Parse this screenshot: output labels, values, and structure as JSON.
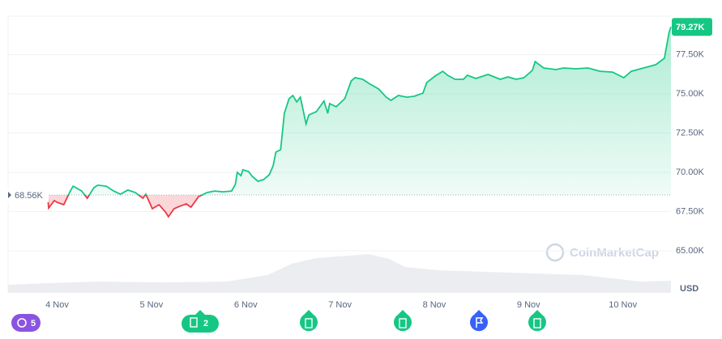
{
  "chart_data": {
    "type": "line",
    "x": [
      -0.1,
      -0.09,
      -0.03,
      0.0,
      0.07,
      0.14,
      0.17,
      0.26,
      0.32,
      0.39,
      0.43,
      0.52,
      0.6,
      0.67,
      0.75,
      0.83,
      0.91,
      0.94,
      1.01,
      1.08,
      1.15,
      1.18,
      1.24,
      1.3,
      1.37,
      1.42,
      1.5,
      1.59,
      1.67,
      1.76,
      1.85,
      1.89,
      1.91,
      1.95,
      1.97,
      2.03,
      2.07,
      2.13,
      2.19,
      2.25,
      2.29,
      2.32,
      2.37,
      2.41,
      2.46,
      2.5,
      2.54,
      2.58,
      2.64,
      2.67,
      2.75,
      2.83,
      2.87,
      2.89,
      2.96,
      3.05,
      3.12,
      3.16,
      3.24,
      3.32,
      3.41,
      3.49,
      3.54,
      3.62,
      3.71,
      3.79,
      3.88,
      3.92,
      4.01,
      4.09,
      4.14,
      4.22,
      4.31,
      4.35,
      4.44,
      4.57,
      4.7,
      4.78,
      4.87,
      4.95,
      5.04,
      5.07,
      5.16,
      5.29,
      5.37,
      5.5,
      5.63,
      5.76,
      5.89,
      6.01,
      6.09,
      6.22,
      6.35,
      6.44,
      6.49,
      6.51
    ],
    "series": [
      {
        "name": "USD",
        "color": "#16c784",
        "down_color": "#ea3943",
        "values": [
          68.45,
          67.73,
          68.2,
          68.09,
          67.94,
          68.81,
          69.12,
          68.81,
          68.35,
          69.02,
          69.18,
          69.12,
          68.81,
          68.61,
          68.87,
          68.71,
          68.35,
          68.61,
          67.68,
          67.94,
          67.47,
          67.17,
          67.68,
          67.84,
          67.99,
          67.78,
          68.45,
          68.71,
          68.81,
          68.76,
          68.81,
          69.23,
          70.0,
          69.79,
          70.16,
          70.05,
          69.74,
          69.43,
          69.54,
          69.85,
          70.41,
          71.29,
          71.44,
          73.76,
          74.69,
          74.9,
          74.49,
          74.79,
          73.09,
          73.66,
          73.87,
          74.54,
          73.76,
          74.38,
          74.18,
          74.69,
          75.83,
          76.03,
          75.93,
          75.62,
          75.31,
          74.79,
          74.59,
          74.9,
          74.79,
          74.85,
          75.05,
          75.72,
          76.14,
          76.44,
          76.19,
          75.93,
          75.93,
          76.19,
          75.98,
          76.24,
          75.93,
          76.08,
          75.93,
          76.03,
          76.5,
          77.06,
          76.65,
          76.55,
          76.65,
          76.6,
          76.65,
          76.44,
          76.39,
          76.03,
          76.44,
          76.65,
          76.86,
          77.27,
          78.92,
          79.27
        ]
      }
    ],
    "xlim": [
      -0.52,
      6.51
    ],
    "xticks": [
      {
        "value": 0,
        "label": "4 Nov"
      },
      {
        "value": 1,
        "label": "5 Nov"
      },
      {
        "value": 2,
        "label": "6 Nov"
      },
      {
        "value": 3,
        "label": "7 Nov"
      },
      {
        "value": 4,
        "label": "8 Nov"
      },
      {
        "value": 5,
        "label": "9 Nov"
      },
      {
        "value": 6,
        "label": "10 Nov"
      }
    ],
    "ylim": [
      62.32,
      79.95
    ],
    "yticks": [
      {
        "value": 65,
        "label": "65.00K"
      },
      {
        "value": 67.5,
        "label": "67.50K"
      },
      {
        "value": 70,
        "label": "70.00K"
      },
      {
        "value": 72.5,
        "label": "72.50K"
      },
      {
        "value": 75,
        "label": "75.00K"
      },
      {
        "value": 77.5,
        "label": "77.50K"
      }
    ],
    "grid": true,
    "baseline": {
      "value": 68.56,
      "label": "68.56K"
    },
    "current": {
      "value": 79.27,
      "label": "79.27K"
    },
    "y_axis_label": "USD",
    "watermark": "CoinMarketCap",
    "events": {
      "history_count": "5",
      "news_count": "2"
    }
  }
}
